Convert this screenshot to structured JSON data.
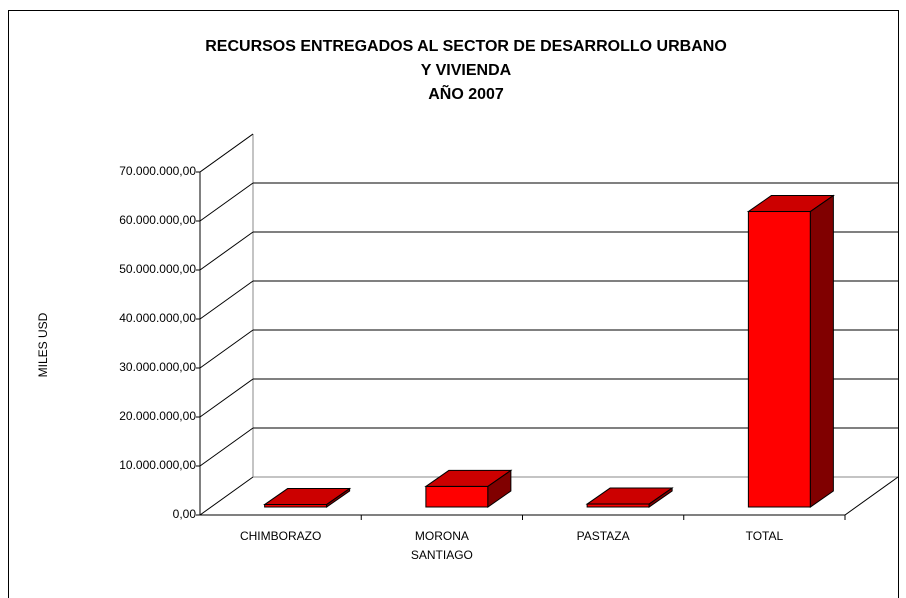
{
  "chart_data": {
    "type": "bar3d",
    "title": [
      "RECURSOS ENTREGADOS AL SECTOR DE DESARROLLO URBANO",
      "Y VIVIENDA",
      "AÑO 2007"
    ],
    "y_label": "MILES USD",
    "categories": [
      [
        "CHIMBORAZO"
      ],
      [
        "MORONA",
        "SANTIAGO"
      ],
      [
        "PASTAZA"
      ],
      [
        "TOTAL"
      ]
    ],
    "values": [
      500000,
      4200000,
      600000,
      60300000
    ],
    "color": "#ff0000",
    "ylim": [
      0,
      70000000
    ],
    "yticks": [
      {
        "value": 0,
        "label": "0,00"
      },
      {
        "value": 10000000,
        "label": "10.000.000,00"
      },
      {
        "value": 20000000,
        "label": "20.000.000,00"
      },
      {
        "value": 30000000,
        "label": "30.000.000,00"
      },
      {
        "value": 40000000,
        "label": "40.000.000,00"
      },
      {
        "value": 50000000,
        "label": "50.000.000,00"
      },
      {
        "value": 60000000,
        "label": "60.000.000,00"
      },
      {
        "value": 70000000,
        "label": "70.000.000,00"
      }
    ],
    "grid": true
  }
}
